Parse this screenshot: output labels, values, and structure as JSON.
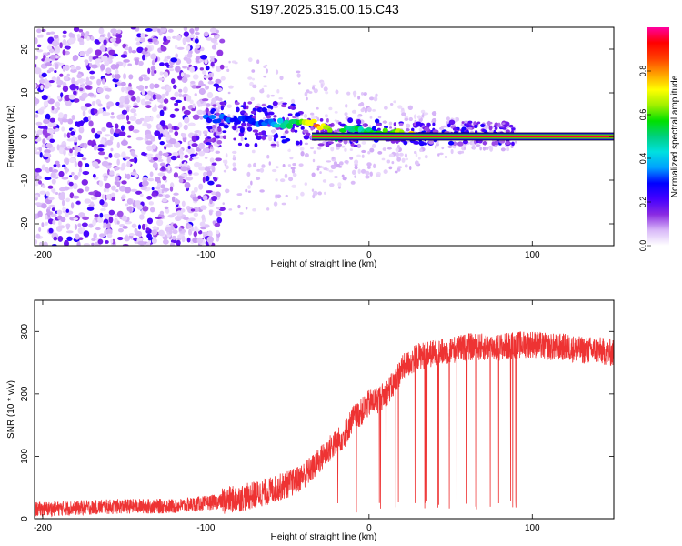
{
  "figure_title": "S197.2025.315.00.15.C43",
  "chart_data": [
    {
      "type": "heatmap",
      "title": "S197.2025.315.00.15.C43",
      "xlabel": "Height of straight line (km)",
      "ylabel": "Frequency (Hz)",
      "xlim": [
        -205,
        150
      ],
      "ylim": [
        -25,
        25
      ],
      "xticks": [
        -200,
        -100,
        0,
        100
      ],
      "yticks": [
        -20,
        -10,
        0,
        10,
        20
      ],
      "colorbar": {
        "label": "Normalized spectral amplitude",
        "range": [
          0.0,
          1.0
        ],
        "ticks": [
          0.0,
          0.2,
          0.4,
          0.6,
          0.8
        ],
        "colors": [
          "#ffffff",
          "#d8b8f8",
          "#8a2be2",
          "#4400ff",
          "#0000ff",
          "#00a0ff",
          "#00e0e0",
          "#00d080",
          "#00e000",
          "#a0f000",
          "#ffff00",
          "#ffa000",
          "#ff4000",
          "#ff0000",
          "#ff00a0"
        ]
      },
      "features": {
        "noise_band_x": [
          -205,
          -90
        ],
        "scatter_band_x": [
          -90,
          90
        ],
        "carrier_line_start_x": -35,
        "carrier_frequency": 0,
        "carrier_amplitude": 0.95,
        "drift_path": [
          {
            "x": -100,
            "f": 4,
            "amp": 0.3
          },
          {
            "x": -80,
            "f": 4,
            "amp": 0.3
          },
          {
            "x": -60,
            "f": 3,
            "amp": 0.35
          },
          {
            "x": -45,
            "f": 3,
            "amp": 0.55
          },
          {
            "x": -32,
            "f": 3,
            "amp": 0.8
          },
          {
            "x": -20,
            "f": 0,
            "amp": 0.55
          },
          {
            "x": -12,
            "f": 2,
            "amp": 0.5
          },
          {
            "x": -5,
            "f": 1,
            "amp": 0.5
          },
          {
            "x": 0,
            "f": 1,
            "amp": 0.5
          },
          {
            "x": 10,
            "f": 1,
            "amp": 0.6
          },
          {
            "x": 30,
            "f": 0,
            "amp": 0.75
          }
        ]
      }
    },
    {
      "type": "line",
      "xlabel": "Height of straight line (km)",
      "ylabel": "SNR (10 * v/v)",
      "xlim": [
        -205,
        150
      ],
      "ylim": [
        0,
        350
      ],
      "xticks": [
        -200,
        -100,
        0,
        100
      ],
      "yticks": [
        0,
        100,
        200,
        300
      ],
      "color": "#ee3333",
      "series": [
        {
          "name": "SNR",
          "x": [
            -205,
            -150,
            -120,
            -100,
            -90,
            -75,
            -60,
            -45,
            -35,
            -25,
            -15,
            -10,
            -5,
            0,
            5,
            10,
            15,
            20,
            25,
            30,
            40,
            50,
            60,
            70,
            80,
            90,
            100,
            110,
            120,
            130,
            140,
            150
          ],
          "y": [
            15,
            20,
            20,
            25,
            28,
            35,
            45,
            60,
            80,
            110,
            135,
            160,
            170,
            185,
            190,
            200,
            215,
            240,
            250,
            260,
            265,
            270,
            275,
            275,
            275,
            278,
            280,
            275,
            275,
            270,
            270,
            265
          ],
          "noise_amplitude": 20,
          "dropout_x_range": [
            0,
            90
          ],
          "dropout_floor": 15
        }
      ]
    }
  ]
}
